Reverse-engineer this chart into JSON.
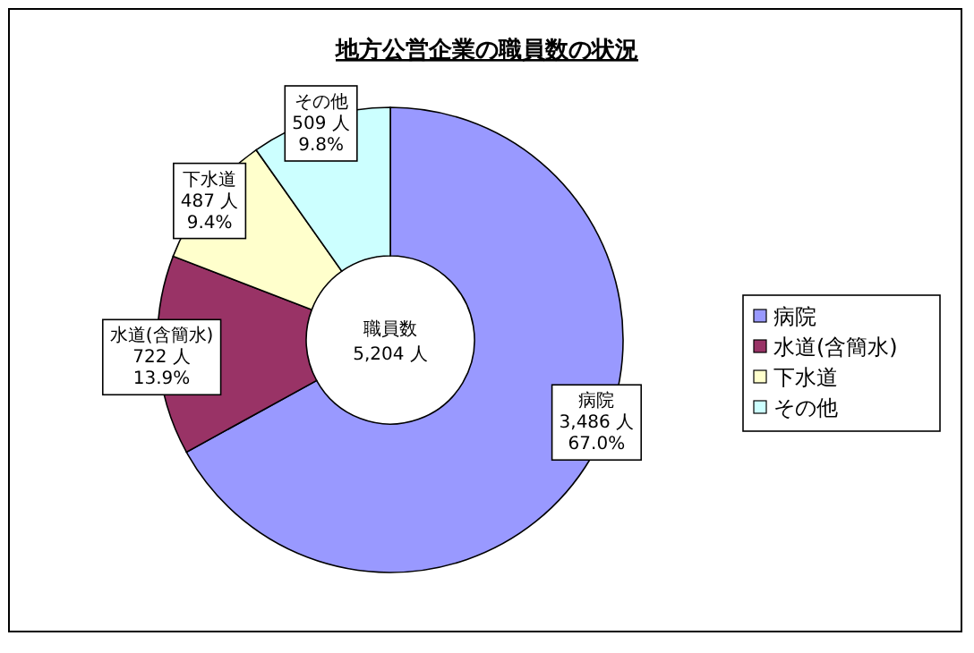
{
  "chart_data": {
    "type": "donut",
    "title": "地方公営企業の職員数の状況",
    "categories": [
      "病院",
      "水道(含簡水)",
      "下水道",
      "その他"
    ],
    "values": [
      3486,
      722,
      487,
      509
    ],
    "colors": [
      "#9999ff",
      "#993366",
      "#ffffcc",
      "#ccffff"
    ],
    "value_labels": [
      "3,486 人\n67.0%",
      "722 人\n13.9%",
      "487 人\n9.4%",
      "509 人\n9.8%"
    ],
    "annotations": [
      "職員数\n5,204 人"
    ],
    "legend": "right"
  }
}
